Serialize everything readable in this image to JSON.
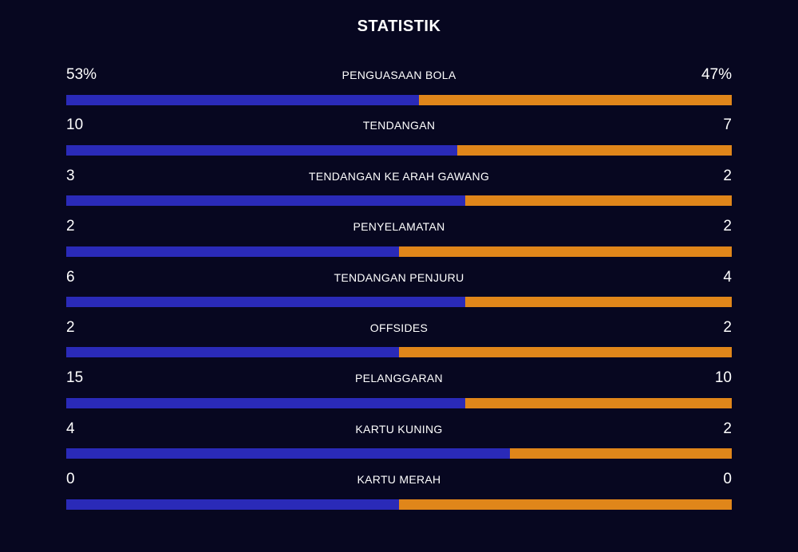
{
  "title": "STATISTIK",
  "colors": {
    "background": "#070720",
    "home_bar": "#2a2ab8",
    "away_bar": "#e0861a"
  },
  "stats": [
    {
      "label": "PENGUASAAN BOLA",
      "home": "53%",
      "away": "47%",
      "home_share": 0.53
    },
    {
      "label": "TENDANGAN",
      "home": "10",
      "away": "7",
      "home_share": 0.588
    },
    {
      "label": "TENDANGAN KE ARAH GAWANG",
      "home": "3",
      "away": "2",
      "home_share": 0.6
    },
    {
      "label": "PENYELAMATAN",
      "home": "2",
      "away": "2",
      "home_share": 0.5
    },
    {
      "label": "TENDANGAN PENJURU",
      "home": "6",
      "away": "4",
      "home_share": 0.6
    },
    {
      "label": "OFFSIDES",
      "home": "2",
      "away": "2",
      "home_share": 0.5
    },
    {
      "label": "PELANGGARAN",
      "home": "15",
      "away": "10",
      "home_share": 0.6
    },
    {
      "label": "KARTU KUNING",
      "home": "4",
      "away": "2",
      "home_share": 0.667
    },
    {
      "label": "KARTU MERAH",
      "home": "0",
      "away": "0",
      "home_share": 0.5
    }
  ]
}
